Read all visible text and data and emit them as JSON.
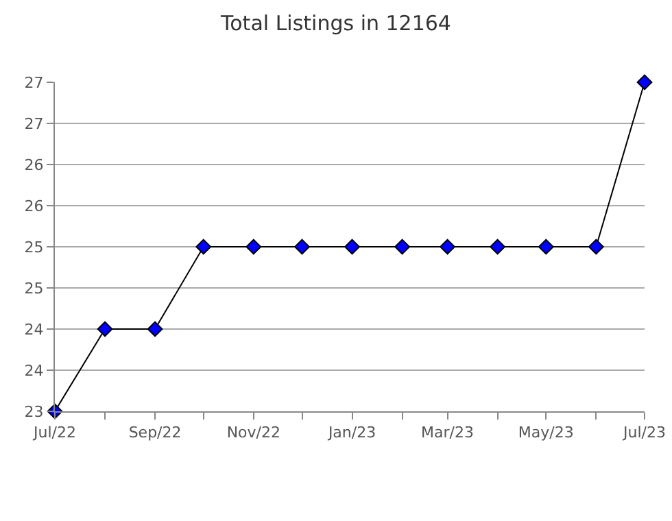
{
  "chart_data": {
    "type": "line",
    "title": "Total Listings in 12164",
    "x": [
      "2022-07",
      "2022-08",
      "2022-09",
      "2022-10",
      "2022-11",
      "2022-12",
      "2023-01",
      "2023-02",
      "2023-03",
      "2023-04",
      "2023-05",
      "2023-06",
      "2023-07"
    ],
    "series": [
      {
        "color": "#0000ff",
        "values": [
          23,
          24,
          24,
          25,
          25,
          25,
          25,
          25,
          25,
          25,
          25,
          25,
          27
        ]
      }
    ],
    "xlim": [
      "2022-07",
      "2023-07"
    ],
    "xticks": [
      {
        "value": "2022-07",
        "label": "Jul/22"
      },
      {
        "value": "2022-08",
        "label": null
      },
      {
        "value": "2022-09",
        "label": "Sep/22"
      },
      {
        "value": "2022-10",
        "label": null
      },
      {
        "value": "2022-11",
        "label": "Nov/22"
      },
      {
        "value": "2022-12",
        "label": null
      },
      {
        "value": "2023-01",
        "label": "Jan/23"
      },
      {
        "value": "2023-02",
        "label": null
      },
      {
        "value": "2023-03",
        "label": "Mar/23"
      },
      {
        "value": "2023-04",
        "label": null
      },
      {
        "value": "2023-05",
        "label": "May/23"
      },
      {
        "value": "2023-06",
        "label": null
      },
      {
        "value": "2023-07",
        "label": "Jul/23"
      }
    ],
    "ylim": [
      23,
      27
    ],
    "yticks": [
      23,
      {
        "value": 23.5,
        "label": "24"
      },
      24,
      {
        "value": 24.5,
        "label": "25"
      },
      25,
      {
        "value": 25.5,
        "label": "26"
      },
      26,
      {
        "value": 26.5,
        "label": "27"
      },
      27
    ],
    "grid": "y",
    "marker": "diamond",
    "line_style": "solid"
  }
}
